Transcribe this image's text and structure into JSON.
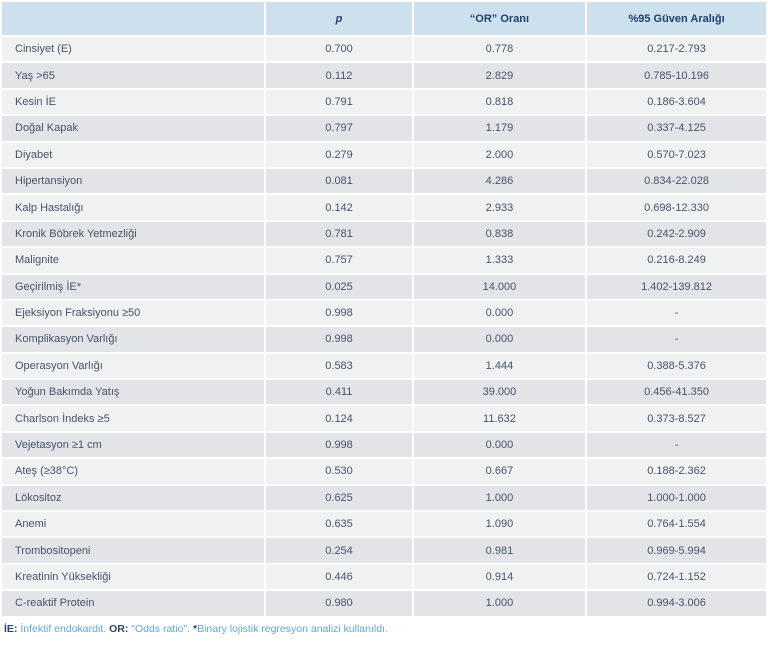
{
  "table": {
    "columns": [
      "",
      "p",
      "“OR” Oranı",
      "%95 Güven Aralığı"
    ],
    "rows": [
      {
        "label": "Cinsiyet (E)",
        "p": "0.700",
        "or": "0.778",
        "ci": "0.217-2.793"
      },
      {
        "label": "Yaş >65",
        "p": "0.112",
        "or": "2.829",
        "ci": "0.785-10.196"
      },
      {
        "label": "Kesin İE",
        "p": "0.791",
        "or": "0.818",
        "ci": "0.186-3.604"
      },
      {
        "label": "Doğal Kapak",
        "p": "0.797",
        "or": "1.179",
        "ci": "0.337-4.125"
      },
      {
        "label": "Diyabet",
        "p": "0.279",
        "or": "2.000",
        "ci": "0.570-7.023"
      },
      {
        "label": "Hipertansiyon",
        "p": "0.081",
        "or": "4.286",
        "ci": "0.834-22.028"
      },
      {
        "label": "Kalp Hastalığı",
        "p": "0.142",
        "or": "2.933",
        "ci": "0.698-12.330"
      },
      {
        "label": "Kronik Böbrek Yetmezliği",
        "p": "0.781",
        "or": "0.838",
        "ci": "0.242-2.909"
      },
      {
        "label": "Malignite",
        "p": "0.757",
        "or": "1.333",
        "ci": "0.216-8.249"
      },
      {
        "label": "Geçirilmiş İE*",
        "p": "0.025",
        "or": "14.000",
        "ci": "1.402-139.812"
      },
      {
        "label": "Ejeksiyon Fraksiyonu ≥50",
        "p": "0.998",
        "or": "0.000",
        "ci": "-"
      },
      {
        "label": "Komplikasyon Varlığı",
        "p": "0.998",
        "or": "0.000",
        "ci": "-"
      },
      {
        "label": "Operasyon Varlığı",
        "p": "0.583",
        "or": "1.444",
        "ci": "0.388-5.376"
      },
      {
        "label": "Yoğun Bakımda Yatış",
        "p": "0.411",
        "or": "39.000",
        "ci": "0.456-41.350"
      },
      {
        "label": "Charlson İndeks ≥5",
        "p": "0.124",
        "or": "11.632",
        "ci": "0.373-8.527"
      },
      {
        "label": "Vejetasyon ≥1 cm",
        "p": "0.998",
        "or": "0.000",
        "ci": "-"
      },
      {
        "label": "Ateş (≥38°C)",
        "p": "0.530",
        "or": "0.667",
        "ci": "0.188-2.362"
      },
      {
        "label": "Lökositoz",
        "p": "0.625",
        "or": "1.000",
        "ci": "1.000-1.000"
      },
      {
        "label": "Anemi",
        "p": "0.635",
        "or": "1.090",
        "ci": "0.764-1.554"
      },
      {
        "label": "Trombositopeni",
        "p": "0.254",
        "or": "0.981",
        "ci": "0.969-5.994"
      },
      {
        "label": "Kreatinin Yüksekliği",
        "p": "0.446",
        "or": "0.914",
        "ci": "0.724-1.152"
      },
      {
        "label": "C-reaktif Protein",
        "p": "0.980",
        "or": "1.000",
        "ci": "0.994-3.006"
      }
    ]
  },
  "footnote": {
    "segments": [
      {
        "text": "İE:",
        "emphasis": true
      },
      {
        "text": " İnfektif endokardit. ",
        "emphasis": false
      },
      {
        "text": "OR:",
        "emphasis": true
      },
      {
        "text": " \"Odds ratio\". ",
        "emphasis": false
      },
      {
        "text": "*",
        "emphasis": true
      },
      {
        "text": "Binary lojistik regresyon analizi kullanıldı.",
        "emphasis": false
      }
    ]
  },
  "colors": {
    "header_bg": "#cde0ee",
    "header_text": "#21406b",
    "row_odd_bg": "#f0f1f1",
    "row_even_bg": "#e3e4e7",
    "body_text": "#47526b",
    "footnote_light": "#5da9d9",
    "footnote_dark": "#2b4a70"
  }
}
